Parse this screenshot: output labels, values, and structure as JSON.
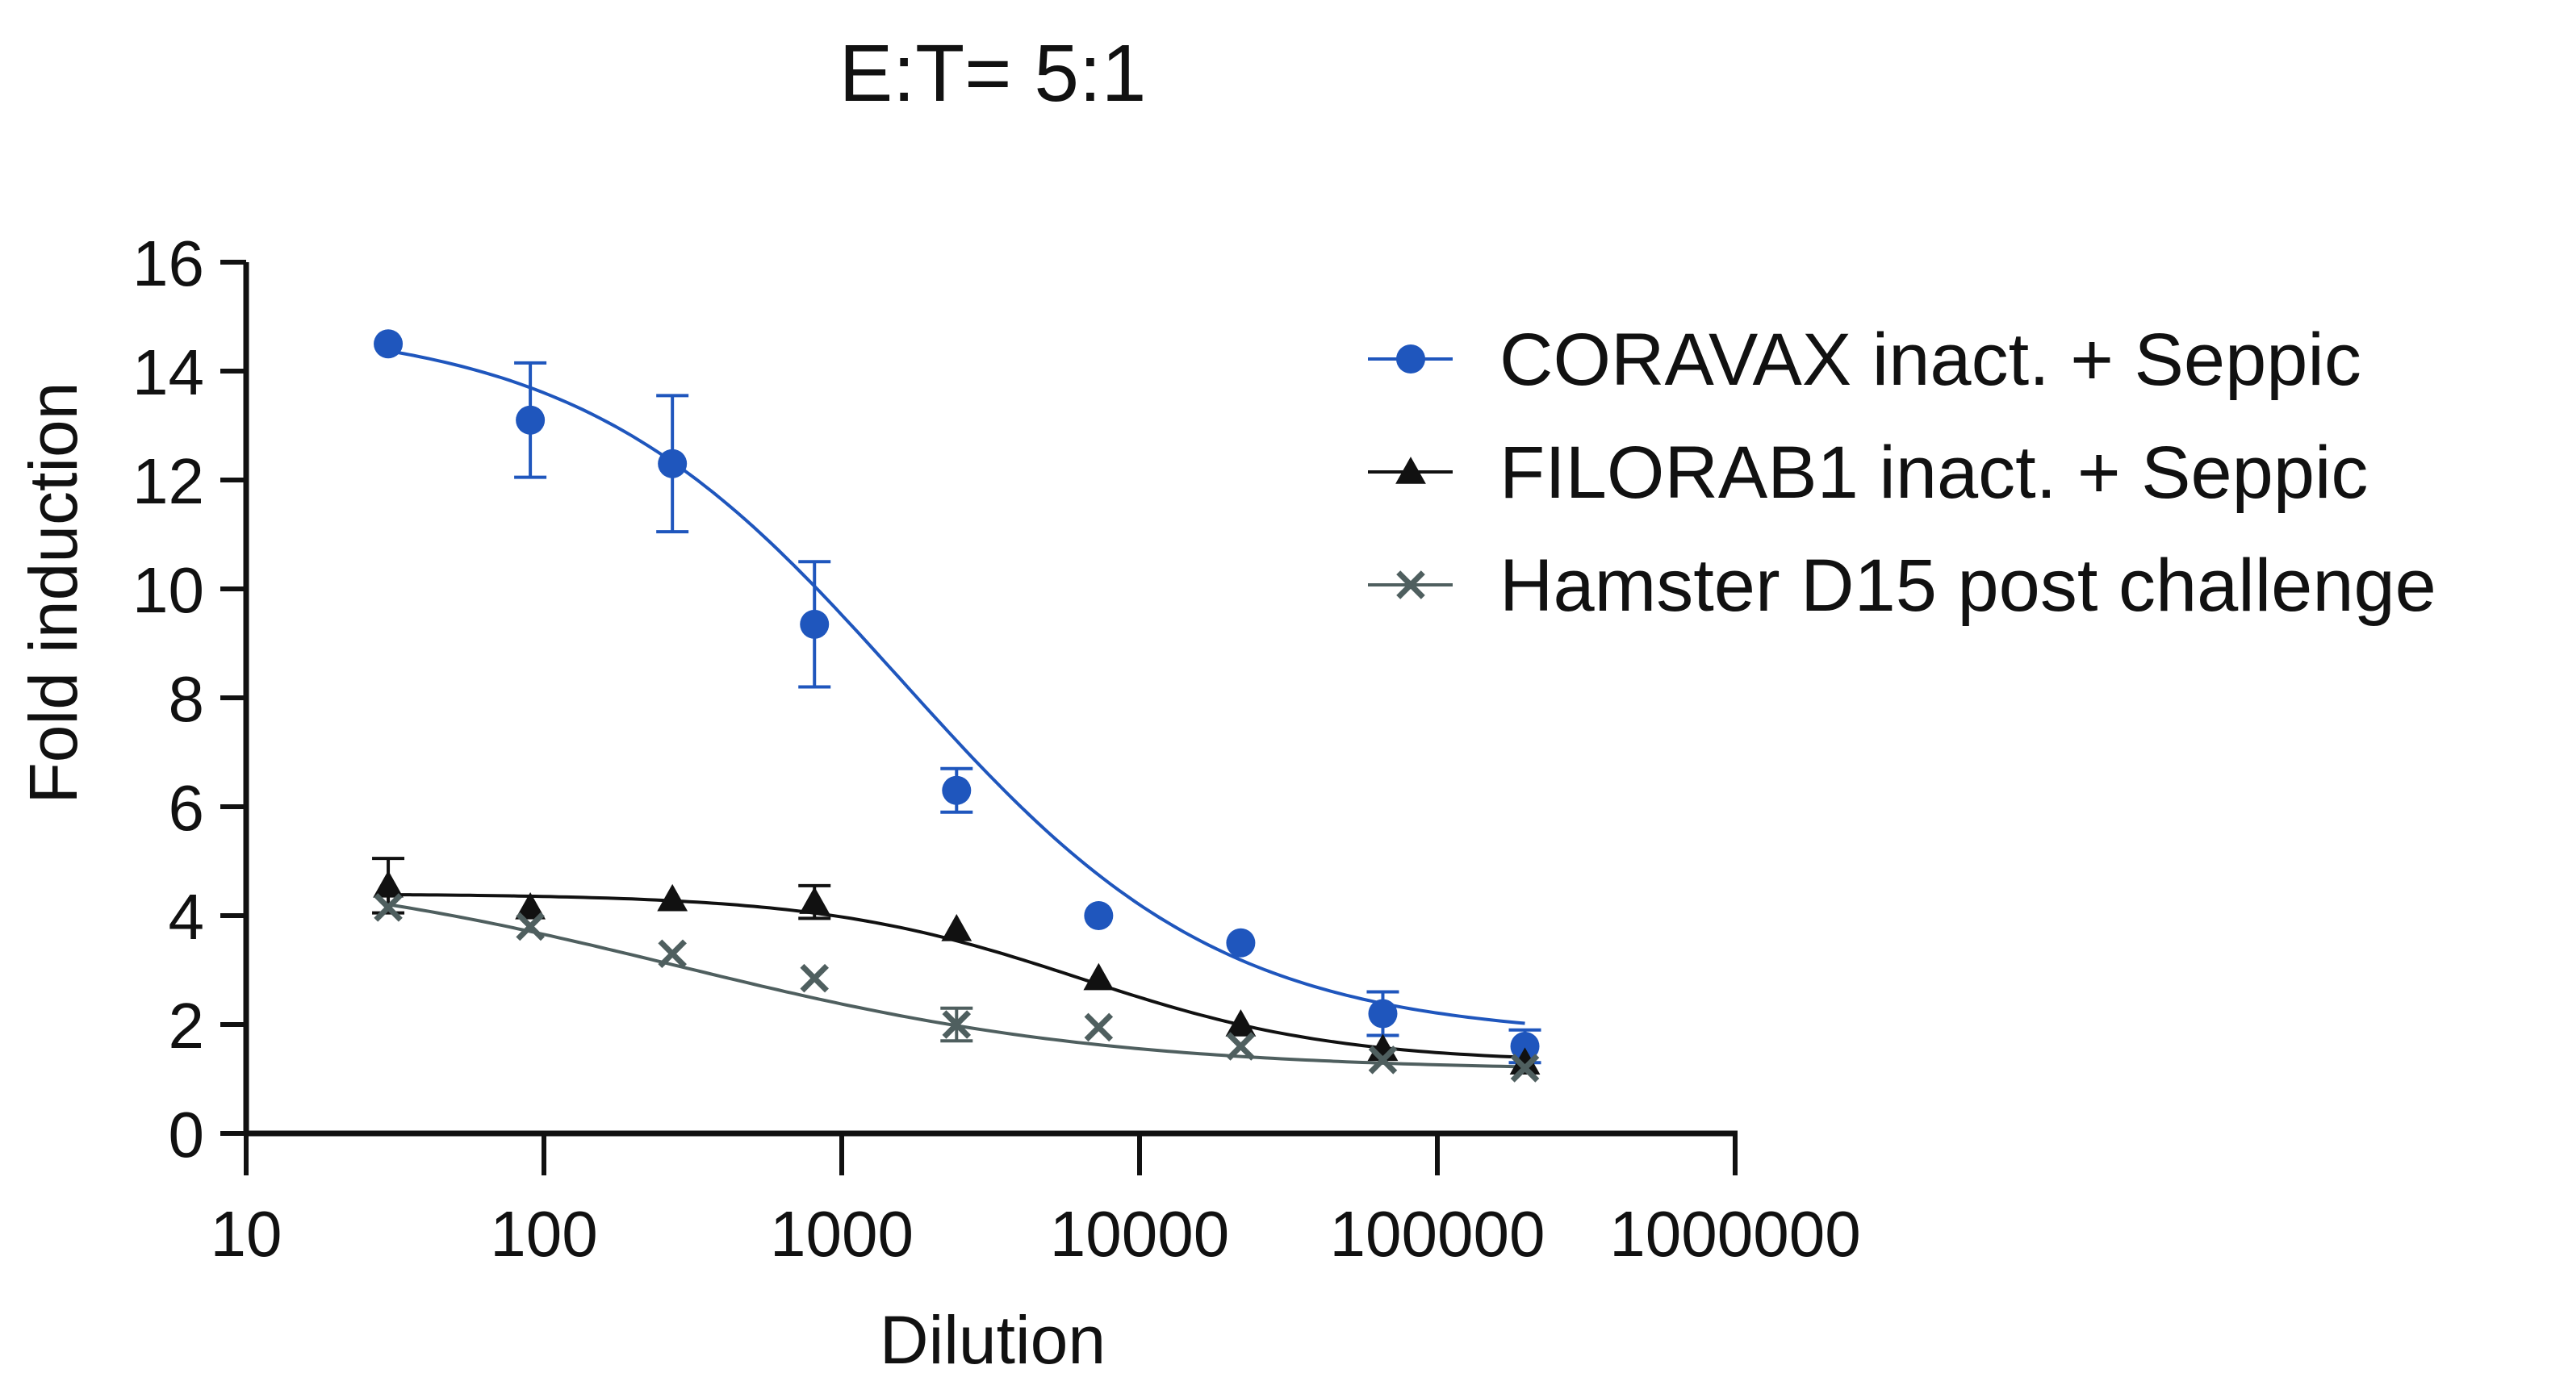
{
  "chart_data": {
    "type": "scatter",
    "title": "E:T= 5:1",
    "xlabel": "Dilution",
    "ylabel": "Fold induction",
    "xscale": "log",
    "xlim": [
      10,
      1000000
    ],
    "ylim": [
      0,
      16
    ],
    "xticks": [
      10,
      100,
      1000,
      10000,
      100000,
      1000000
    ],
    "xtick_labels": [
      "10",
      "100",
      "1000",
      "10000",
      "100000",
      "1000000"
    ],
    "yticks": [
      0,
      2,
      4,
      6,
      8,
      10,
      12,
      14,
      16
    ],
    "ytick_labels": [
      "0",
      "2",
      "4",
      "6",
      "8",
      "10",
      "12",
      "14",
      "16"
    ],
    "grid": false,
    "legend_position": "top-right",
    "x": [
      30,
      90,
      270,
      810,
      2430,
      7290,
      21870,
      65610,
      196830
    ],
    "series": [
      {
        "name": "CORAVAX inact. + Seppic",
        "marker": "circle",
        "color": "#1f56bd",
        "values": [
          14.5,
          13.1,
          12.3,
          9.35,
          6.3,
          4.0,
          3.5,
          2.2,
          1.6
        ],
        "errors": [
          0.0,
          1.05,
          1.25,
          1.15,
          0.4,
          0.0,
          0.0,
          0.4,
          0.3
        ],
        "fit": {
          "bottom": 1.75,
          "top": 14.9,
          "logEC50": 3.2,
          "hill": 0.8
        }
      },
      {
        "name": "FILORAB1 inact. + Seppic",
        "marker": "triangle",
        "color": "#111111",
        "values": [
          4.55,
          4.15,
          4.3,
          4.25,
          3.75,
          2.85,
          2.0,
          1.55,
          1.3
        ],
        "errors": [
          0.5,
          0.0,
          0.0,
          0.3,
          0.0,
          0.0,
          0.0,
          0.0,
          0.0
        ],
        "fit": {
          "bottom": 1.3,
          "top": 4.4,
          "logEC50": 3.8,
          "hill": 1.0
        }
      },
      {
        "name": "Hamster D15 post challenge",
        "marker": "x",
        "color": "#4f5f5f",
        "values": [
          4.15,
          3.8,
          3.3,
          2.85,
          2.0,
          1.95,
          1.6,
          1.35,
          1.2
        ],
        "errors": [
          0.0,
          0.0,
          0.0,
          0.0,
          0.3,
          0.0,
          0.0,
          0.0,
          0.0
        ],
        "fit": {
          "bottom": 1.15,
          "top": 5.0,
          "logEC50": 2.45,
          "hill": 0.6
        }
      }
    ]
  }
}
